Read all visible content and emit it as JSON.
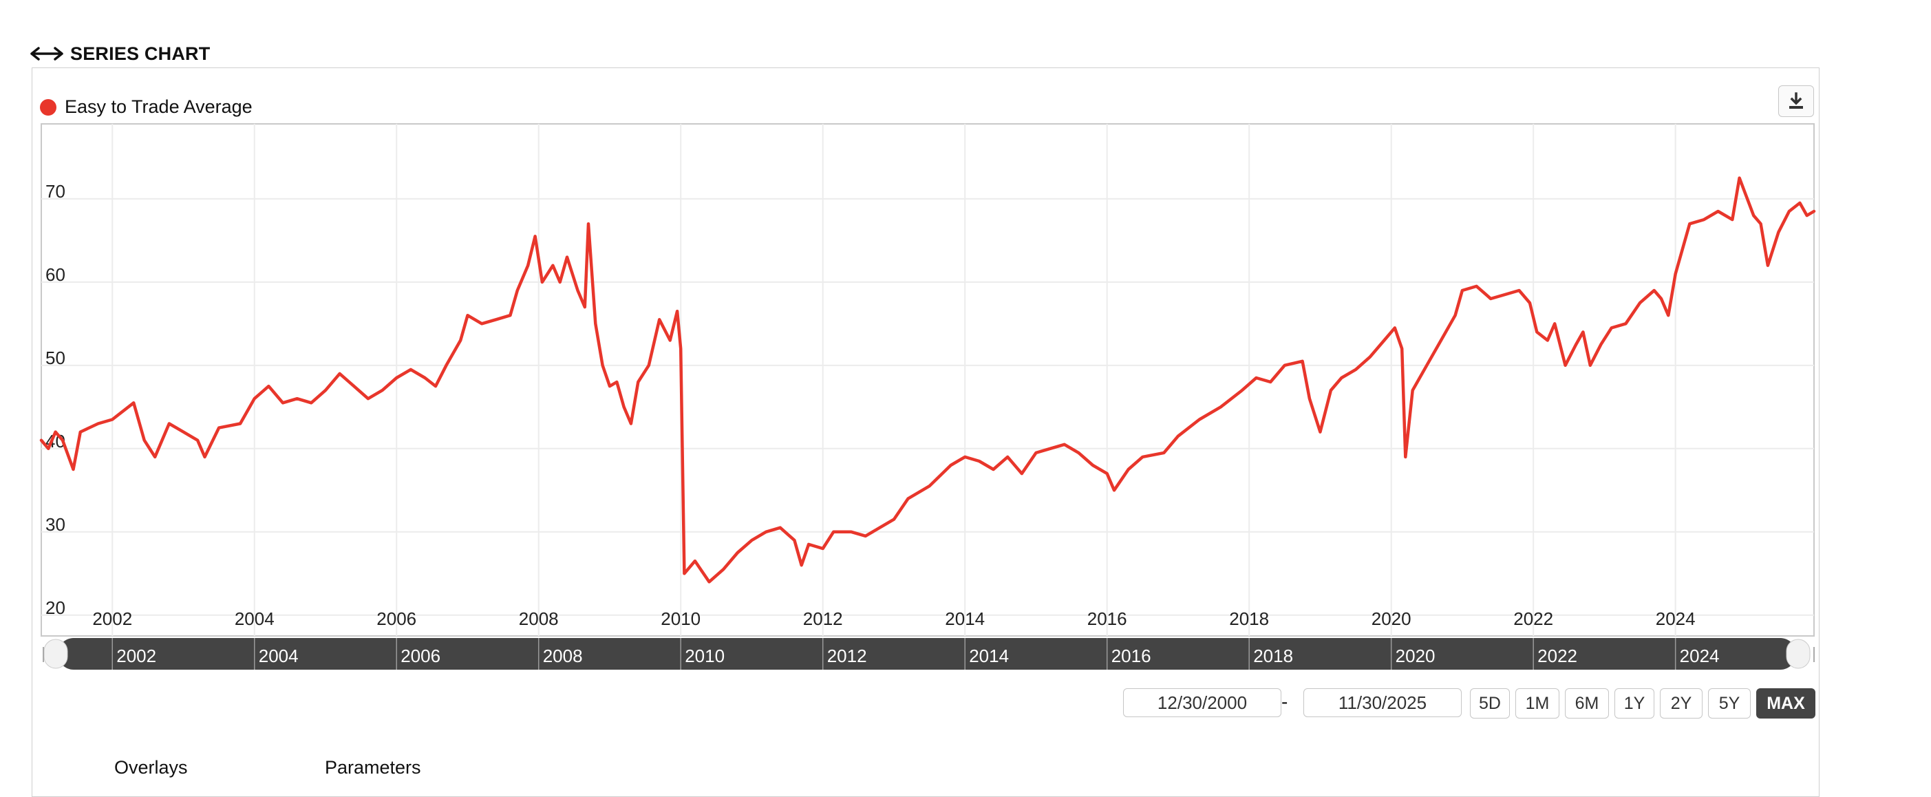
{
  "header": {
    "title": "SERIES CHART",
    "icon": "double-arrow-icon"
  },
  "legend": {
    "label": "Easy to Trade Average",
    "color": "#e8362b"
  },
  "download": {
    "icon": "download-icon"
  },
  "range": {
    "start": "12/30/2000",
    "separator": "-",
    "end": "11/30/2025"
  },
  "periods": [
    "5D",
    "1M",
    "6M",
    "1Y",
    "2Y",
    "5Y",
    "MAX"
  ],
  "active_period": "MAX",
  "tabs": [
    "Overlays",
    "Parameters"
  ],
  "chart_data": {
    "type": "line",
    "title": "",
    "xlabel": "",
    "ylabel": "",
    "xlim": [
      2001.0,
      2025.95
    ],
    "ylim": [
      17.5,
      79
    ],
    "x_ticks": [
      "2002",
      "2004",
      "2006",
      "2008",
      "2010",
      "2012",
      "2014",
      "2016",
      "2018",
      "2020",
      "2022",
      "2024"
    ],
    "y_ticks": [
      20,
      30,
      40,
      50,
      60,
      70
    ],
    "grid": true,
    "navigator_ticks": [
      "2002",
      "2004",
      "2006",
      "2008",
      "2010",
      "2012",
      "2014",
      "2016",
      "2018",
      "2020",
      "2022",
      "2024"
    ],
    "series": [
      {
        "name": "Easy to Trade Average",
        "color": "#e8362b",
        "points": [
          [
            2001.0,
            41
          ],
          [
            2001.1,
            40
          ],
          [
            2001.2,
            42
          ],
          [
            2001.3,
            41
          ],
          [
            2001.45,
            37.5
          ],
          [
            2001.55,
            42
          ],
          [
            2001.8,
            43
          ],
          [
            2002.0,
            43.5
          ],
          [
            2002.3,
            45.5
          ],
          [
            2002.45,
            41
          ],
          [
            2002.6,
            39
          ],
          [
            2002.8,
            43
          ],
          [
            2003.0,
            42
          ],
          [
            2003.2,
            41
          ],
          [
            2003.3,
            39
          ],
          [
            2003.5,
            42.5
          ],
          [
            2003.8,
            43
          ],
          [
            2004.0,
            46
          ],
          [
            2004.2,
            47.5
          ],
          [
            2004.4,
            45.5
          ],
          [
            2004.6,
            46
          ],
          [
            2004.8,
            45.5
          ],
          [
            2005.0,
            47
          ],
          [
            2005.2,
            49
          ],
          [
            2005.4,
            47.5
          ],
          [
            2005.6,
            46
          ],
          [
            2005.8,
            47
          ],
          [
            2006.0,
            48.5
          ],
          [
            2006.2,
            49.5
          ],
          [
            2006.4,
            48.5
          ],
          [
            2006.55,
            47.5
          ],
          [
            2006.7,
            50
          ],
          [
            2006.9,
            53
          ],
          [
            2007.0,
            56
          ],
          [
            2007.2,
            55
          ],
          [
            2007.4,
            55.5
          ],
          [
            2007.6,
            56
          ],
          [
            2007.7,
            59
          ],
          [
            2007.85,
            62
          ],
          [
            2007.95,
            65.5
          ],
          [
            2008.05,
            60
          ],
          [
            2008.2,
            62
          ],
          [
            2008.3,
            60
          ],
          [
            2008.4,
            63
          ],
          [
            2008.55,
            59
          ],
          [
            2008.65,
            57
          ],
          [
            2008.7,
            67
          ],
          [
            2008.8,
            55
          ],
          [
            2008.9,
            50
          ],
          [
            2009.0,
            47.5
          ],
          [
            2009.1,
            48
          ],
          [
            2009.2,
            45
          ],
          [
            2009.3,
            43
          ],
          [
            2009.4,
            48
          ],
          [
            2009.55,
            50
          ],
          [
            2009.7,
            55.5
          ],
          [
            2009.85,
            53
          ],
          [
            2009.95,
            56.5
          ],
          [
            2010.0,
            52
          ],
          [
            2010.05,
            25
          ],
          [
            2010.2,
            26.5
          ],
          [
            2010.4,
            24
          ],
          [
            2010.6,
            25.5
          ],
          [
            2010.8,
            27.5
          ],
          [
            2011.0,
            29
          ],
          [
            2011.2,
            30
          ],
          [
            2011.4,
            30.5
          ],
          [
            2011.6,
            29
          ],
          [
            2011.7,
            26
          ],
          [
            2011.8,
            28.5
          ],
          [
            2012.0,
            28
          ],
          [
            2012.15,
            30
          ],
          [
            2012.4,
            30
          ],
          [
            2012.6,
            29.5
          ],
          [
            2012.8,
            30.5
          ],
          [
            2013.0,
            31.5
          ],
          [
            2013.2,
            34
          ],
          [
            2013.5,
            35.5
          ],
          [
            2013.8,
            38
          ],
          [
            2014.0,
            39
          ],
          [
            2014.2,
            38.5
          ],
          [
            2014.4,
            37.5
          ],
          [
            2014.6,
            39
          ],
          [
            2014.8,
            37
          ],
          [
            2015.0,
            39.5
          ],
          [
            2015.2,
            40
          ],
          [
            2015.4,
            40.5
          ],
          [
            2015.6,
            39.5
          ],
          [
            2015.8,
            38
          ],
          [
            2016.0,
            37
          ],
          [
            2016.1,
            35
          ],
          [
            2016.3,
            37.5
          ],
          [
            2016.5,
            39
          ],
          [
            2016.8,
            39.5
          ],
          [
            2017.0,
            41.5
          ],
          [
            2017.3,
            43.5
          ],
          [
            2017.6,
            45
          ],
          [
            2017.9,
            47
          ],
          [
            2018.1,
            48.5
          ],
          [
            2018.3,
            48
          ],
          [
            2018.5,
            50
          ],
          [
            2018.75,
            50.5
          ],
          [
            2018.85,
            46
          ],
          [
            2019.0,
            42
          ],
          [
            2019.15,
            47
          ],
          [
            2019.3,
            48.5
          ],
          [
            2019.5,
            49.5
          ],
          [
            2019.7,
            51
          ],
          [
            2019.9,
            53
          ],
          [
            2020.05,
            54.5
          ],
          [
            2020.15,
            52
          ],
          [
            2020.2,
            39
          ],
          [
            2020.3,
            47
          ],
          [
            2020.5,
            50
          ],
          [
            2020.7,
            53
          ],
          [
            2020.9,
            56
          ],
          [
            2021.0,
            59
          ],
          [
            2021.2,
            59.5
          ],
          [
            2021.4,
            58
          ],
          [
            2021.6,
            58.5
          ],
          [
            2021.8,
            59
          ],
          [
            2021.95,
            57.5
          ],
          [
            2022.05,
            54
          ],
          [
            2022.2,
            53
          ],
          [
            2022.3,
            55
          ],
          [
            2022.45,
            50
          ],
          [
            2022.6,
            52.5
          ],
          [
            2022.7,
            54
          ],
          [
            2022.8,
            50
          ],
          [
            2022.95,
            52.5
          ],
          [
            2023.1,
            54.5
          ],
          [
            2023.3,
            55
          ],
          [
            2023.5,
            57.5
          ],
          [
            2023.7,
            59
          ],
          [
            2023.8,
            58
          ],
          [
            2023.9,
            56
          ],
          [
            2024.0,
            61
          ],
          [
            2024.1,
            64
          ],
          [
            2024.2,
            67
          ],
          [
            2024.4,
            67.5
          ],
          [
            2024.6,
            68.5
          ],
          [
            2024.8,
            67.5
          ],
          [
            2024.9,
            72.5
          ],
          [
            2025.1,
            68
          ],
          [
            2025.2,
            67
          ],
          [
            2025.3,
            62
          ],
          [
            2025.45,
            66
          ],
          [
            2025.6,
            68.5
          ],
          [
            2025.75,
            69.5
          ],
          [
            2025.85,
            68
          ],
          [
            2025.95,
            68.5
          ]
        ]
      }
    ]
  }
}
